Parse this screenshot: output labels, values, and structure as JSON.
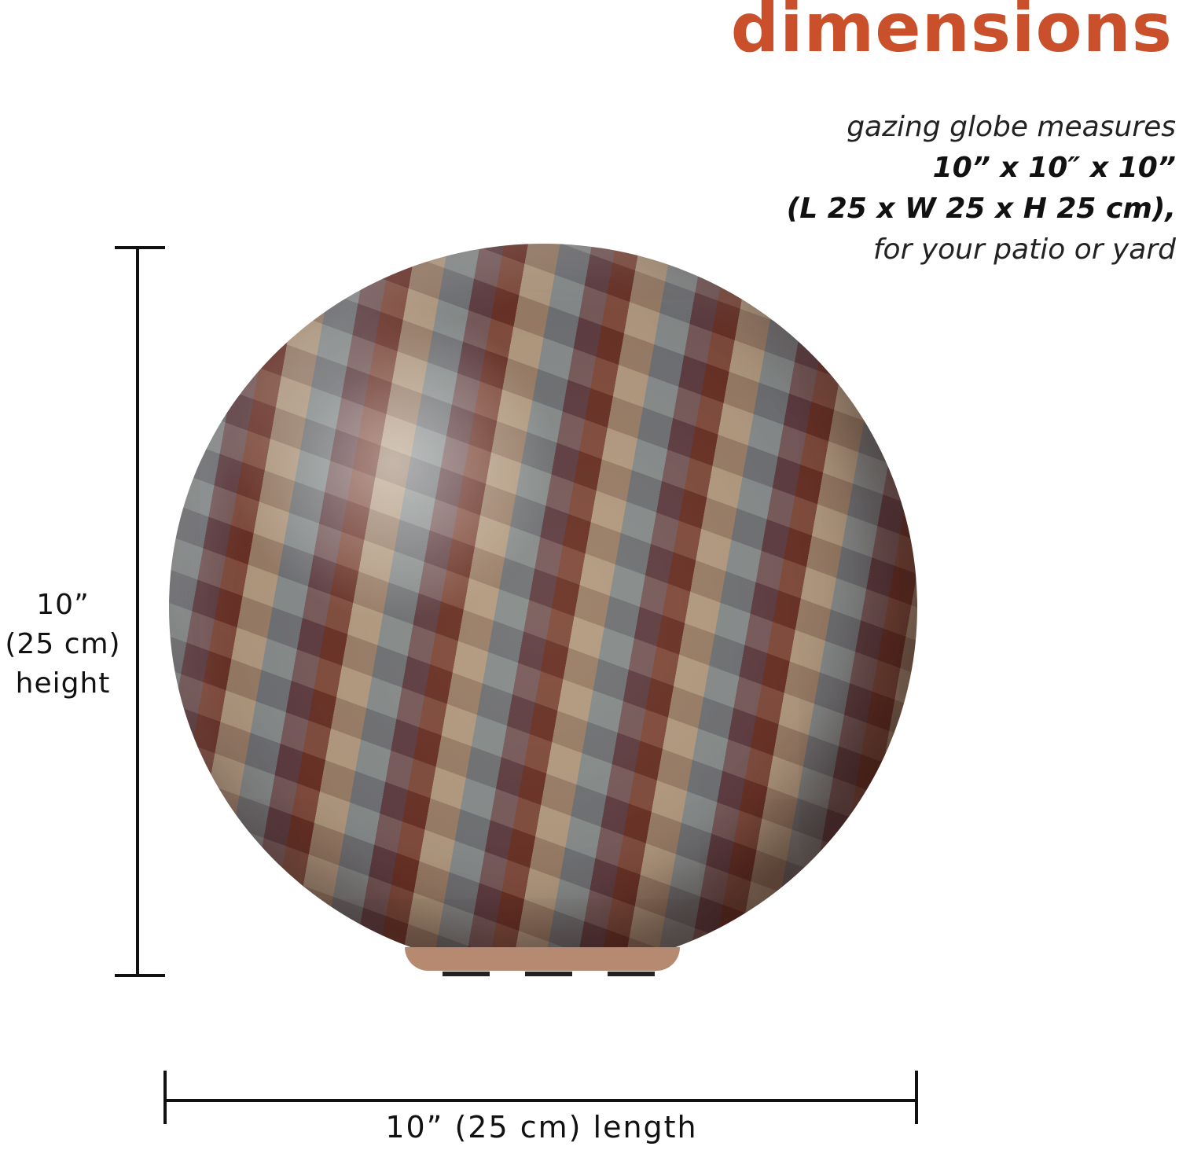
{
  "heading": "dimensions",
  "description": {
    "line1": "gazing globe measures",
    "line2": "10” x 10″ x 10”",
    "line3": "(L 25 x W 25 x H 25 cm),",
    "line4": "for your patio or yard"
  },
  "height_label": {
    "line1": "10”",
    "line2": "(25 cm)",
    "line3": "height"
  },
  "length_label": "10” (25 cm) length",
  "colors": {
    "heading": "#c9502a",
    "text": "#111111"
  }
}
